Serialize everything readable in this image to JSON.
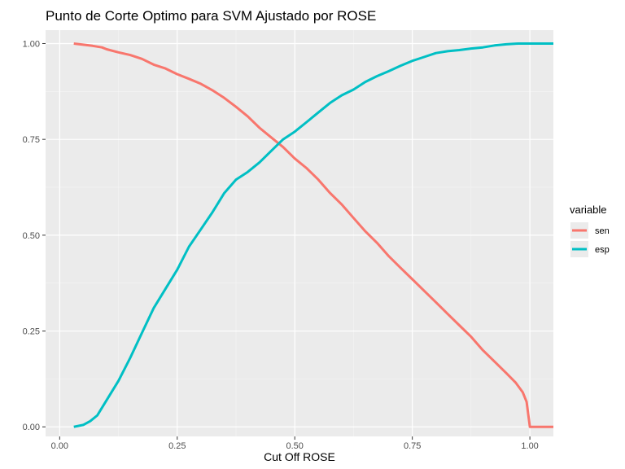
{
  "chart_data": {
    "type": "line",
    "title": "Punto de Corte Optimo para SVM Ajustado por ROSE",
    "xlabel": "Cut Off ROSE",
    "ylabel": "",
    "xlim": [
      -0.03,
      1.05
    ],
    "ylim": [
      -0.025,
      1.035
    ],
    "x_ticks": [
      0.0,
      0.25,
      0.5,
      0.75,
      1.0
    ],
    "x_tick_labels": [
      "0.00",
      "0.25",
      "0.50",
      "0.75",
      "1.00"
    ],
    "y_ticks": [
      0.0,
      0.25,
      0.5,
      0.75,
      1.0
    ],
    "y_tick_labels": [
      "0.00",
      "0.25",
      "0.50",
      "0.75",
      "1.00"
    ],
    "grid": true,
    "legend": {
      "title": "variable",
      "position": "right"
    },
    "series": [
      {
        "name": "sen",
        "color": "#F8766D",
        "x": [
          0.03,
          0.05,
          0.07,
          0.09,
          0.1,
          0.125,
          0.15,
          0.175,
          0.2,
          0.225,
          0.25,
          0.275,
          0.3,
          0.325,
          0.35,
          0.375,
          0.4,
          0.425,
          0.45,
          0.475,
          0.5,
          0.525,
          0.55,
          0.575,
          0.6,
          0.625,
          0.65,
          0.675,
          0.7,
          0.725,
          0.75,
          0.775,
          0.8,
          0.825,
          0.85,
          0.875,
          0.9,
          0.925,
          0.95,
          0.97,
          0.985,
          0.993,
          1.0,
          1.05
        ],
        "y": [
          1.0,
          0.997,
          0.994,
          0.99,
          0.985,
          0.977,
          0.97,
          0.96,
          0.945,
          0.935,
          0.92,
          0.908,
          0.895,
          0.878,
          0.858,
          0.835,
          0.81,
          0.78,
          0.755,
          0.73,
          0.7,
          0.675,
          0.645,
          0.61,
          0.58,
          0.545,
          0.51,
          0.48,
          0.445,
          0.415,
          0.385,
          0.355,
          0.325,
          0.295,
          0.265,
          0.235,
          0.2,
          0.17,
          0.14,
          0.115,
          0.09,
          0.065,
          0.0,
          0.0
        ]
      },
      {
        "name": "esp",
        "color": "#00BFC4",
        "x": [
          0.03,
          0.05,
          0.065,
          0.08,
          0.1,
          0.125,
          0.15,
          0.175,
          0.2,
          0.225,
          0.25,
          0.275,
          0.3,
          0.325,
          0.35,
          0.375,
          0.4,
          0.425,
          0.45,
          0.475,
          0.5,
          0.525,
          0.55,
          0.575,
          0.6,
          0.625,
          0.65,
          0.675,
          0.7,
          0.725,
          0.75,
          0.775,
          0.8,
          0.825,
          0.85,
          0.875,
          0.9,
          0.925,
          0.95,
          0.975,
          1.0,
          1.05
        ],
        "y": [
          0.0,
          0.005,
          0.015,
          0.03,
          0.07,
          0.12,
          0.18,
          0.245,
          0.31,
          0.36,
          0.41,
          0.47,
          0.515,
          0.56,
          0.61,
          0.645,
          0.665,
          0.69,
          0.72,
          0.75,
          0.77,
          0.795,
          0.82,
          0.845,
          0.865,
          0.88,
          0.9,
          0.915,
          0.928,
          0.942,
          0.955,
          0.965,
          0.975,
          0.98,
          0.983,
          0.987,
          0.99,
          0.995,
          0.998,
          1.0,
          1.0,
          1.0
        ]
      }
    ]
  }
}
